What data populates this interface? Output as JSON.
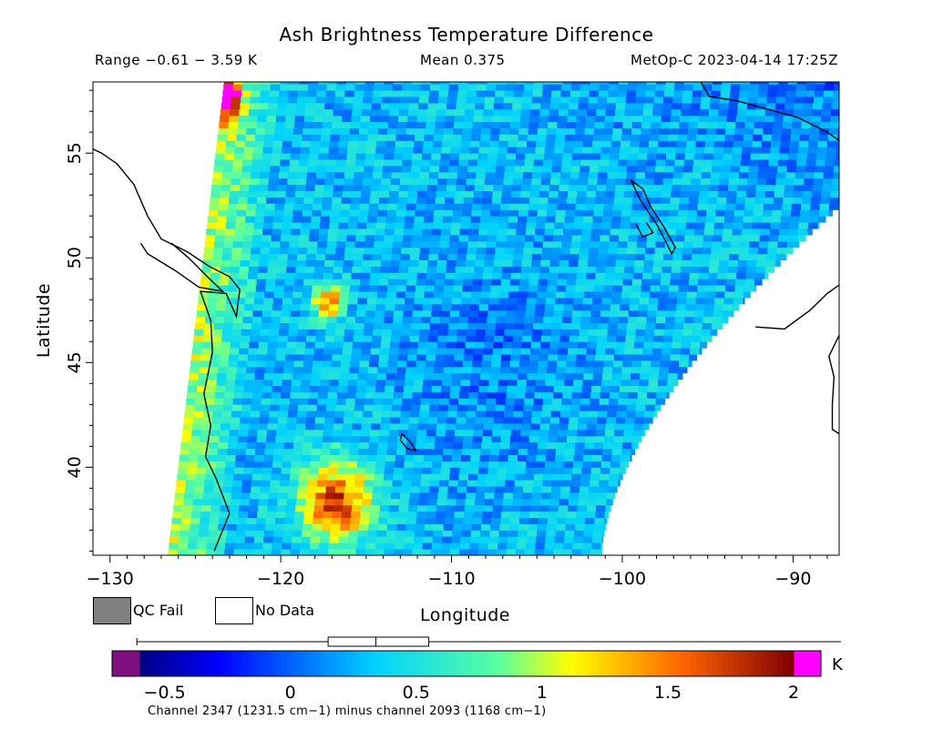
{
  "chart_data": {
    "type": "heatmap",
    "title": "Ash Brightness Temperature Difference",
    "subtitle_left": "Range −0.61 − 3.59 K",
    "subtitle_center": "Mean 0.375",
    "subtitle_right": "MetOp-C 2023-04-14 17:25Z",
    "xlabel": "Longitude",
    "ylabel": "Latitude",
    "xlim": [
      -131,
      -87.3
    ],
    "ylim": [
      35.8,
      58.4
    ],
    "xticks": [
      {
        "value": -130,
        "label": "−130"
      },
      {
        "value": -120,
        "label": "−120"
      },
      {
        "value": -110,
        "label": "−110"
      },
      {
        "value": -100,
        "label": "−100"
      },
      {
        "value": -90,
        "label": "−90"
      }
    ],
    "yticks": [
      {
        "value": 40,
        "label": "40"
      },
      {
        "value": 45,
        "label": "45"
      },
      {
        "value": 50,
        "label": "50"
      },
      {
        "value": 55,
        "label": "55"
      }
    ],
    "value_range": [
      -0.61,
      3.59
    ],
    "mean": 0.375,
    "units": "K",
    "swath_regions": [
      {
        "region": "Pacific coast, western swath edge",
        "approx_value": 0.9
      },
      {
        "region": "Northern California / Nevada (37-41N, 120-114W)",
        "approx_value": 1.7
      },
      {
        "region": "Oregon / Washington interior (47-48N, 118-117W)",
        "approx_value": 1.6
      },
      {
        "region": "Central swath (Great Basin to Plains)",
        "approx_value": 0.3
      },
      {
        "region": "Northeast swath (Manitoba / Ontario)",
        "approx_value": 0.0
      },
      {
        "region": "Eastern swath edge",
        "approx_value": 0.3
      }
    ],
    "legend": [
      {
        "label": "QC Fail",
        "color": "#808080"
      },
      {
        "label": "No Data",
        "color": "#ffffff"
      }
    ],
    "colorbar": {
      "ticks": [
        {
          "value": -0.5,
          "label": "−0.5"
        },
        {
          "value": 0,
          "label": "0"
        },
        {
          "value": 0.5,
          "label": "0.5"
        },
        {
          "value": 1,
          "label": "1"
        },
        {
          "value": 1.5,
          "label": "1.5"
        },
        {
          "value": 2,
          "label": "2"
        }
      ],
      "range": [
        -0.6,
        2.0
      ],
      "under_color": "#7f0f7f",
      "over_color": "#ff00ff",
      "unit": "K",
      "caption": "Channel 2347 (1231.5 cm−1) minus channel 2093 (1168 cm−1)",
      "boxplot": {
        "min": -0.61,
        "q1": 0.15,
        "median": 0.34,
        "q3": 0.55,
        "max": 2.0
      }
    }
  }
}
